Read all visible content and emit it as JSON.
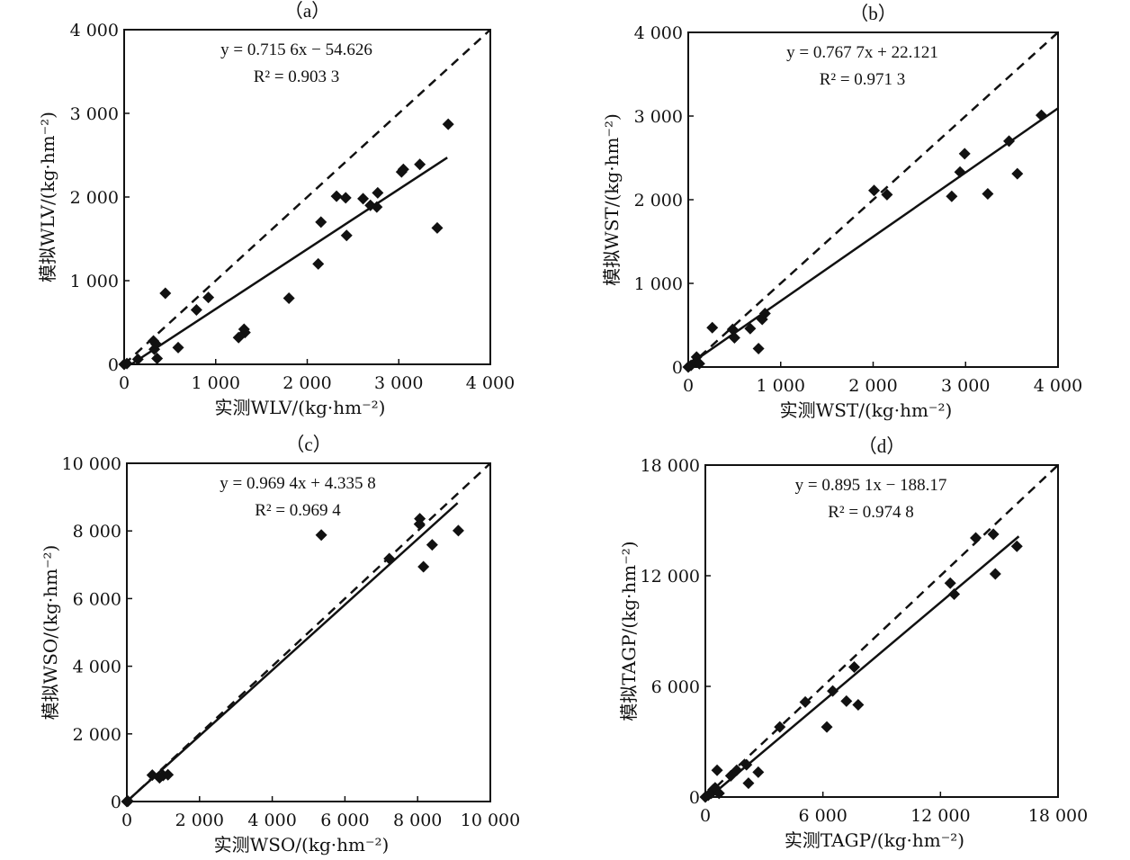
{
  "chart_data": [
    {
      "type": "scatter",
      "title": "（a）",
      "xlabel": "实测WLV/(kg·hm⁻²)",
      "ylabel": "模拟WLV/(kg·hm⁻²)",
      "xlim": [
        0,
        4000
      ],
      "ylim": [
        0,
        4000
      ],
      "xticks": [
        0,
        1000,
        2000,
        3000,
        4000
      ],
      "yticks": [
        0,
        1000,
        2000,
        3000,
        4000
      ],
      "xtick_labels": [
        "0",
        "1 000",
        "2 000",
        "3 000",
        "4 000"
      ],
      "ytick_labels": [
        "0",
        "1 000",
        "2 000",
        "3 000",
        "4 000"
      ],
      "equation": "y = 0.715 6x − 54.626",
      "r2": "R² = 0.903 3",
      "fit": {
        "slope": 0.7156,
        "intercept": -54.626,
        "x_range": [
          0,
          3530
        ]
      },
      "reference_line": "1:1",
      "points": [
        [
          0,
          0
        ],
        [
          30,
          10
        ],
        [
          150,
          60
        ],
        [
          320,
          280
        ],
        [
          330,
          180
        ],
        [
          350,
          240
        ],
        [
          360,
          70
        ],
        [
          450,
          850
        ],
        [
          590,
          200
        ],
        [
          790,
          650
        ],
        [
          920,
          800
        ],
        [
          1250,
          320
        ],
        [
          1310,
          420
        ],
        [
          1320,
          380
        ],
        [
          1800,
          790
        ],
        [
          2120,
          1200
        ],
        [
          2150,
          1700
        ],
        [
          2320,
          2010
        ],
        [
          2420,
          1990
        ],
        [
          2430,
          1540
        ],
        [
          2610,
          1980
        ],
        [
          2690,
          1900
        ],
        [
          2760,
          1880
        ],
        [
          2770,
          2050
        ],
        [
          3030,
          2300
        ],
        [
          3050,
          2330
        ],
        [
          3230,
          2390
        ],
        [
          3420,
          1630
        ],
        [
          3540,
          2870
        ]
      ]
    },
    {
      "type": "scatter",
      "title": "（b）",
      "xlabel": "实测WST/(kg·hm⁻²)",
      "ylabel": "模拟WST/(kg·hm⁻²)",
      "xlim": [
        0,
        4000
      ],
      "ylim": [
        0,
        4000
      ],
      "xticks": [
        0,
        1000,
        2000,
        3000,
        4000
      ],
      "yticks": [
        0,
        1000,
        2000,
        3000,
        4000
      ],
      "xtick_labels": [
        "0",
        "1 000",
        "2 000",
        "3 000",
        "4 000"
      ],
      "ytick_labels": [
        "0",
        "1 000",
        "2 000",
        "3 000",
        "4 000"
      ],
      "equation": "y = 0.767 7x + 22.121",
      "r2": "R² = 0.971 3",
      "fit": {
        "slope": 0.7677,
        "intercept": 22.121,
        "x_range": [
          0,
          4000
        ]
      },
      "reference_line": "1:1",
      "points": [
        [
          0,
          0
        ],
        [
          30,
          20
        ],
        [
          80,
          60
        ],
        [
          90,
          120
        ],
        [
          120,
          40
        ],
        [
          260,
          470
        ],
        [
          480,
          450
        ],
        [
          500,
          350
        ],
        [
          670,
          460
        ],
        [
          760,
          220
        ],
        [
          800,
          570
        ],
        [
          830,
          640
        ],
        [
          2010,
          2110
        ],
        [
          2150,
          2060
        ],
        [
          2850,
          2040
        ],
        [
          2940,
          2330
        ],
        [
          2990,
          2550
        ],
        [
          3240,
          2070
        ],
        [
          3470,
          2700
        ],
        [
          3560,
          2310
        ],
        [
          3820,
          3010
        ]
      ]
    },
    {
      "type": "scatter",
      "title": "（c）",
      "xlabel": "实测WSO/(kg·hm⁻²)",
      "ylabel": "模拟WSO/(kg·hm⁻²)",
      "xlim": [
        0,
        10000
      ],
      "ylim": [
        0,
        10000
      ],
      "xticks": [
        0,
        2000,
        4000,
        6000,
        8000,
        10000
      ],
      "yticks": [
        0,
        2000,
        4000,
        6000,
        8000,
        10000
      ],
      "xtick_labels": [
        "0",
        "2 000",
        "4 000",
        "6 000",
        "8 000",
        "10 000"
      ],
      "ytick_labels": [
        "0",
        "2 000",
        "4 000",
        "6 000",
        "8 000",
        "10 000"
      ],
      "equation": "y = 0.969 4x + 4.335 8",
      "r2": "R² = 0.969 4",
      "fit": {
        "slope": 0.9694,
        "intercept": 4.3358,
        "x_range": [
          0,
          9100
        ]
      },
      "reference_line": "1:1",
      "points": [
        [
          0,
          0
        ],
        [
          30,
          10
        ],
        [
          700,
          780
        ],
        [
          900,
          700
        ],
        [
          1000,
          770
        ],
        [
          1130,
          790
        ],
        [
          5350,
          7880
        ],
        [
          7220,
          7180
        ],
        [
          8050,
          8200
        ],
        [
          8060,
          8360
        ],
        [
          8160,
          6940
        ],
        [
          8400,
          7590
        ],
        [
          9120,
          8010
        ]
      ]
    },
    {
      "type": "scatter",
      "title": "（d）",
      "xlabel": "实测TAGP/(kg·hm⁻²)",
      "ylabel": "模拟TAGP/(kg·hm⁻²)",
      "xlim": [
        0,
        18000
      ],
      "ylim": [
        0,
        18000
      ],
      "xticks": [
        0,
        6000,
        12000,
        18000
      ],
      "yticks": [
        0,
        6000,
        12000,
        18000
      ],
      "xtick_labels": [
        "0",
        "6 000",
        "12 000",
        "18 000"
      ],
      "ytick_labels": [
        "0",
        "6 000",
        "12 000",
        "18 000"
      ],
      "equation": "y = 0.895 1x − 188.17",
      "r2": "R² = 0.974 8",
      "fit": {
        "slope": 0.8951,
        "intercept": -188.17,
        "x_range": [
          0,
          16000
        ]
      },
      "reference_line": "1:1",
      "points": [
        [
          0,
          0
        ],
        [
          150,
          100
        ],
        [
          300,
          200
        ],
        [
          400,
          400
        ],
        [
          500,
          500
        ],
        [
          600,
          1450
        ],
        [
          700,
          200
        ],
        [
          1300,
          1150
        ],
        [
          1600,
          1450
        ],
        [
          2100,
          1750
        ],
        [
          2200,
          750
        ],
        [
          2700,
          1350
        ],
        [
          3800,
          3800
        ],
        [
          5100,
          5150
        ],
        [
          6200,
          3800
        ],
        [
          6500,
          5750
        ],
        [
          7200,
          5200
        ],
        [
          7600,
          7050
        ],
        [
          7800,
          5000
        ],
        [
          12500,
          11600
        ],
        [
          12700,
          11000
        ],
        [
          13800,
          14050
        ],
        [
          14700,
          14250
        ],
        [
          14800,
          12100
        ],
        [
          15900,
          13600
        ]
      ]
    }
  ]
}
